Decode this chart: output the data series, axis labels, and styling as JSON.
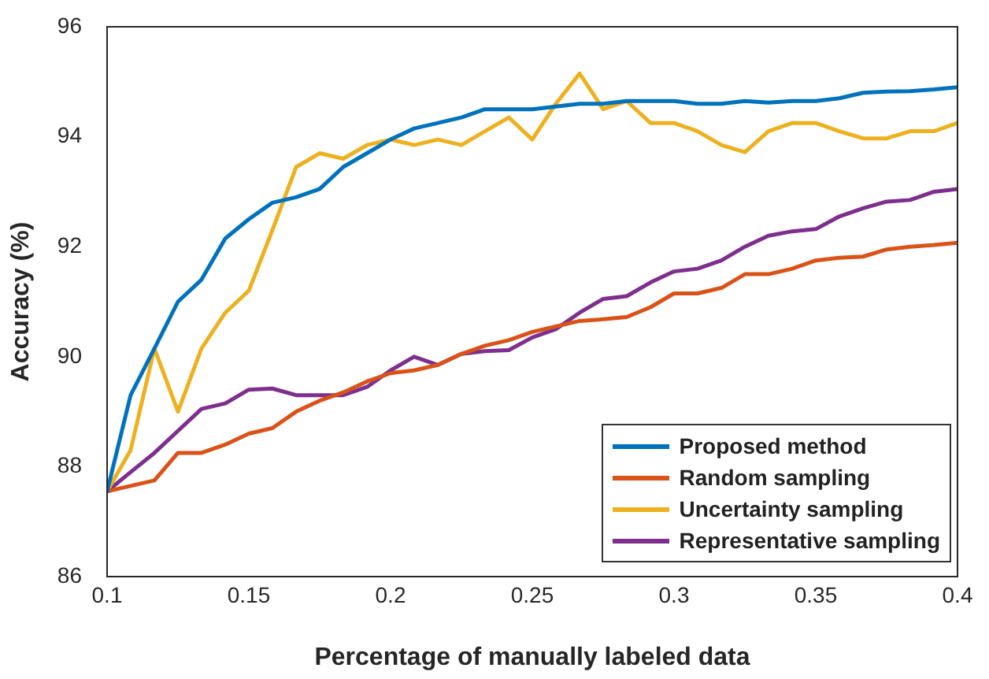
{
  "chart_data": {
    "type": "line",
    "xlabel": "Percentage of manually labeled data",
    "ylabel": "Accuracy (%)",
    "x": [
      0.1,
      0.1083,
      0.1167,
      0.125,
      0.1333,
      0.1417,
      0.15,
      0.1583,
      0.1667,
      0.175,
      0.1833,
      0.1917,
      0.2,
      0.2083,
      0.2167,
      0.225,
      0.2333,
      0.2417,
      0.25,
      0.2583,
      0.2667,
      0.275,
      0.2833,
      0.2917,
      0.3,
      0.3083,
      0.3167,
      0.325,
      0.3333,
      0.3417,
      0.35,
      0.3583,
      0.3667,
      0.375,
      0.3833,
      0.3917,
      0.4
    ],
    "series": [
      {
        "name": "Proposed method",
        "color": "#0072bd",
        "values": [
          87.55,
          89.3,
          90.15,
          91.0,
          91.4,
          92.15,
          92.5,
          92.8,
          92.9,
          93.05,
          93.45,
          93.7,
          93.95,
          94.15,
          94.25,
          94.35,
          94.5,
          94.5,
          94.5,
          94.55,
          94.6,
          94.6,
          94.65,
          94.65,
          94.65,
          94.6,
          94.6,
          94.65,
          94.62,
          94.65,
          94.65,
          94.7,
          94.8,
          94.82,
          94.83,
          94.86,
          94.9
        ]
      },
      {
        "name": "Random sampling",
        "color": "#d95319",
        "values": [
          87.55,
          87.65,
          87.75,
          88.25,
          88.25,
          88.4,
          88.6,
          88.7,
          89.0,
          89.2,
          89.35,
          89.55,
          89.7,
          89.75,
          89.85,
          90.05,
          90.2,
          90.3,
          90.45,
          90.55,
          90.65,
          90.68,
          90.72,
          90.9,
          91.15,
          91.15,
          91.25,
          91.5,
          91.5,
          91.6,
          91.75,
          91.8,
          91.82,
          91.95,
          92.0,
          92.03,
          92.07
        ]
      },
      {
        "name": "Uncertainty sampling",
        "color": "#edb120",
        "values": [
          87.55,
          88.3,
          90.15,
          89.0,
          90.15,
          90.8,
          91.2,
          92.3,
          93.45,
          93.7,
          93.6,
          93.85,
          93.95,
          93.85,
          93.95,
          93.85,
          94.1,
          94.35,
          93.95,
          94.6,
          95.15,
          94.5,
          94.65,
          94.25,
          94.25,
          94.1,
          93.85,
          93.72,
          94.1,
          94.25,
          94.25,
          94.1,
          93.97,
          93.97,
          94.1,
          94.1,
          94.25
        ]
      },
      {
        "name": "Representative sampling",
        "color": "#7e2f8e",
        "values": [
          87.55,
          87.9,
          88.25,
          88.65,
          89.05,
          89.15,
          89.4,
          89.42,
          89.3,
          89.3,
          89.3,
          89.45,
          89.75,
          90.0,
          89.85,
          90.05,
          90.1,
          90.12,
          90.35,
          90.5,
          90.8,
          91.05,
          91.1,
          91.35,
          91.55,
          91.6,
          91.75,
          92.0,
          92.2,
          92.28,
          92.32,
          92.55,
          92.7,
          92.82,
          92.85,
          93.0,
          93.05
        ]
      }
    ],
    "xlim": [
      0.1,
      0.4
    ],
    "xticks": [
      0.1,
      0.15,
      0.2,
      0.25,
      0.3,
      0.35,
      0.4
    ],
    "ylim": [
      86,
      96
    ],
    "yticks": [
      86,
      88,
      90,
      92,
      94,
      96
    ],
    "legend": "bottom right",
    "grid": false,
    "marker": "none",
    "line_style": "solid"
  }
}
